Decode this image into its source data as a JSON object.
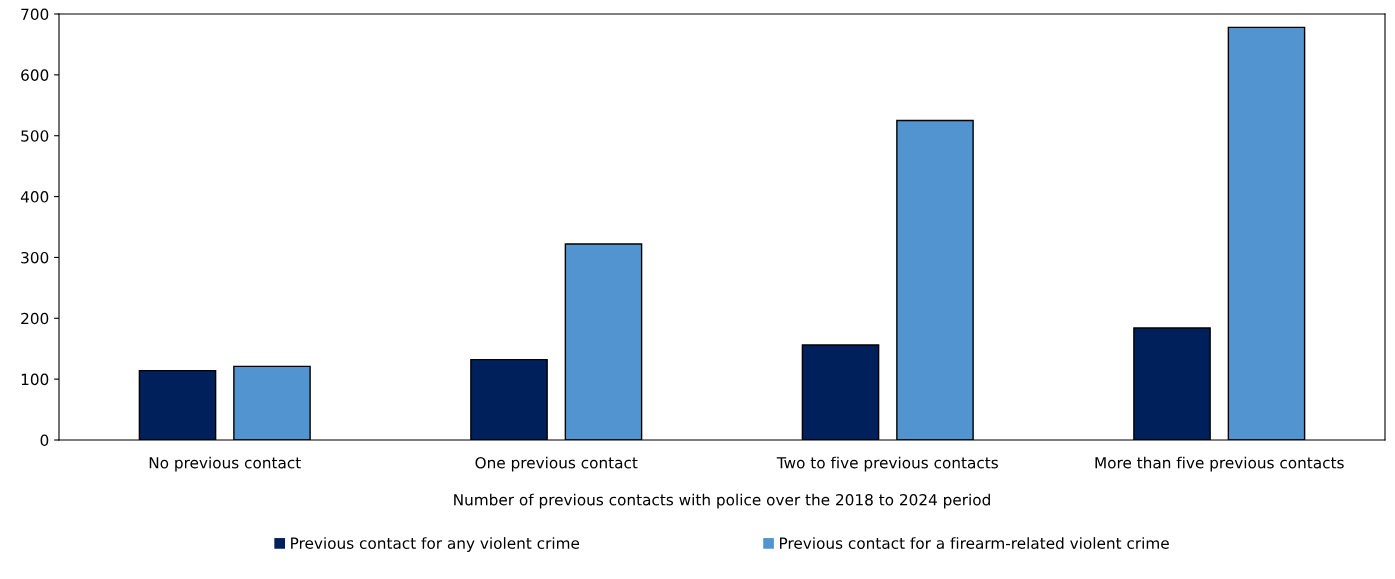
{
  "chart_data": {
    "type": "bar",
    "categories": [
      "No previous contact",
      "One previous contact",
      "Two to five previous contacts",
      "More than five previous contacts"
    ],
    "series": [
      {
        "name": "Previous contact for any violent crime",
        "color": "#00205b",
        "values": [
          114,
          132,
          156,
          184
        ]
      },
      {
        "name": "Previous contact for a firearm-related violent crime",
        "color": "#5294cf",
        "values": [
          121,
          322,
          525,
          678
        ]
      }
    ],
    "xlabel": "Number of previous contacts with police over the 2018 to 2024 period",
    "ylim": [
      0,
      700
    ],
    "yticks": [
      0,
      100,
      200,
      300,
      400,
      500,
      600,
      700
    ],
    "grid": false,
    "legend": "bottom"
  }
}
